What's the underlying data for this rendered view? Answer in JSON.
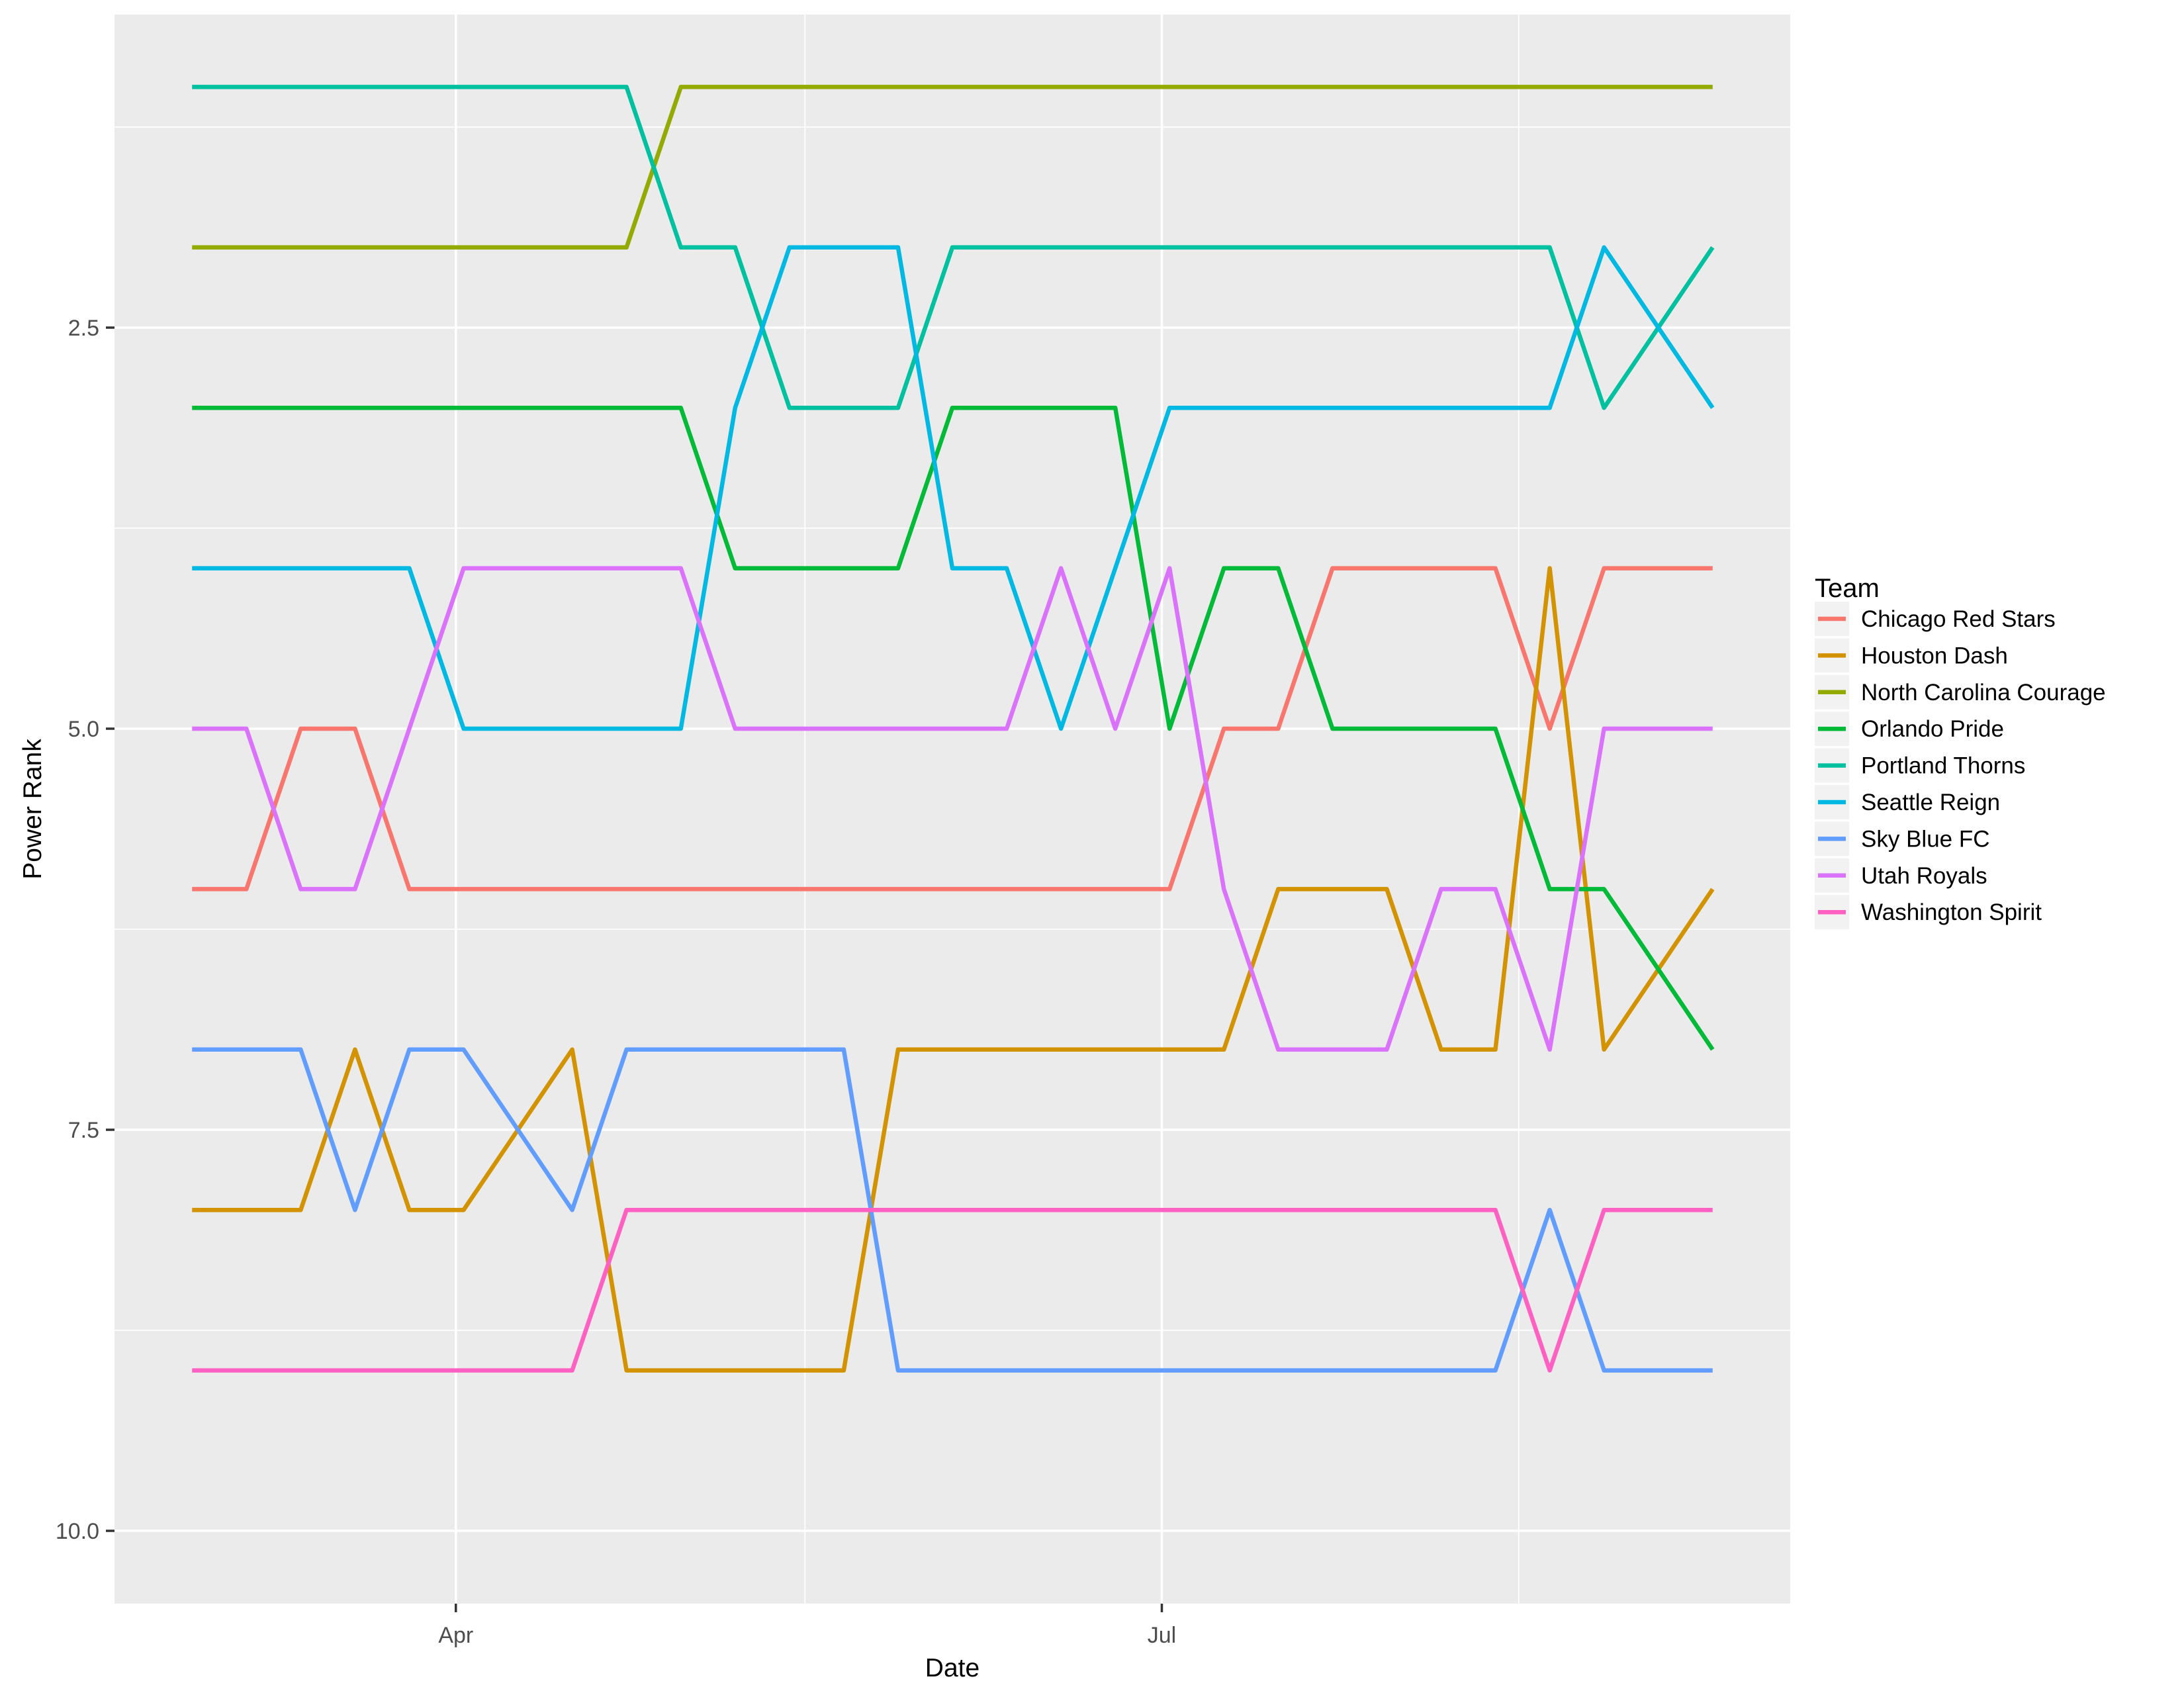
{
  "figure": {
    "kind": "ggplot-style bump chart",
    "background": "#FFFFFF",
    "panel_background": "#EBEBEB",
    "grid_color": "#FFFFFF",
    "tick_color": "#333333",
    "tick_label_color": "#4D4D4D",
    "axis_title_color": "#000000",
    "legend_key_background": "#F2F2F2"
  },
  "axes": {
    "x_title": "Date",
    "y_title": "Power Rank",
    "x_tick_labels": [
      "Apr",
      "Jul"
    ],
    "y_tick_labels": [
      "2.5",
      "5.0",
      "7.5",
      "10.0"
    ]
  },
  "legend": {
    "title": "Team",
    "entries": [
      {
        "label": "Chicago Red Stars",
        "color": "#F8766D"
      },
      {
        "label": "Houston Dash",
        "color": "#D39200"
      },
      {
        "label": "North Carolina Courage",
        "color": "#93AA00"
      },
      {
        "label": "Orlando Pride",
        "color": "#00BA38"
      },
      {
        "label": "Portland Thorns",
        "color": "#00C19F"
      },
      {
        "label": "Seattle Reign",
        "color": "#00B9E3"
      },
      {
        "label": "Sky Blue FC",
        "color": "#619CFF"
      },
      {
        "label": "Utah Royals",
        "color": "#DB72FB"
      },
      {
        "label": "Washington Spirit",
        "color": "#FF61C3"
      }
    ]
  },
  "chart_data": {
    "type": "line",
    "title": "",
    "xlabel": "Date",
    "ylabel": "Power Rank",
    "y_axis_reversed": true,
    "ylim_display": [
      0.55,
      10.45
    ],
    "grid": true,
    "legend_position": "right",
    "x_dates": [
      "2018-02-26",
      "2018-03-05",
      "2018-03-12",
      "2018-03-19",
      "2018-03-26",
      "2018-04-02",
      "2018-04-16",
      "2018-04-23",
      "2018-04-30",
      "2018-05-07",
      "2018-05-14",
      "2018-05-21",
      "2018-05-28",
      "2018-06-04",
      "2018-06-11",
      "2018-06-18",
      "2018-06-25",
      "2018-07-02",
      "2018-07-09",
      "2018-07-16",
      "2018-07-23",
      "2018-07-30",
      "2018-08-06",
      "2018-08-13",
      "2018-08-20",
      "2018-08-27",
      "2018-09-10"
    ],
    "x_day_offsets": [
      10,
      17,
      24,
      31,
      38,
      45,
      59,
      66,
      73,
      80,
      87,
      94,
      101,
      108,
      115,
      122,
      129,
      136,
      143,
      150,
      157,
      164,
      171,
      178,
      185,
      192,
      206
    ],
    "x_domain_days": 216,
    "x_breaks": [
      {
        "label": "Apr",
        "day": 44
      },
      {
        "label": "Jul",
        "day": 135
      }
    ],
    "x_minor_days": [
      89,
      181
    ],
    "y_breaks": [
      {
        "label": "2.5",
        "rank": 2.5
      },
      {
        "label": "5.0",
        "rank": 5.0
      },
      {
        "label": "7.5",
        "rank": 7.5
      },
      {
        "label": "10.0",
        "rank": 10.0
      }
    ],
    "y_minor_ranks": [
      1.25,
      3.75,
      6.25,
      8.75
    ],
    "series": [
      {
        "name": "Chicago Red Stars",
        "color": "#F8766D",
        "values": [
          6,
          6,
          5,
          5,
          6,
          6,
          6,
          6,
          6,
          6,
          6,
          6,
          6,
          6,
          6,
          6,
          6,
          6,
          5,
          5,
          4,
          4,
          4,
          4,
          5,
          4,
          4
        ]
      },
      {
        "name": "Houston Dash",
        "color": "#D39200",
        "values": [
          8,
          8,
          8,
          7,
          8,
          8,
          7,
          9,
          9,
          9,
          9,
          9,
          7,
          7,
          7,
          7,
          7,
          7,
          7,
          6,
          6,
          6,
          7,
          7,
          4,
          7,
          6
        ]
      },
      {
        "name": "North Carolina Courage",
        "color": "#93AA00",
        "values": [
          2,
          2,
          2,
          2,
          2,
          2,
          2,
          2,
          1,
          1,
          1,
          1,
          1,
          1,
          1,
          1,
          1,
          1,
          1,
          1,
          1,
          1,
          1,
          1,
          1,
          1,
          1
        ]
      },
      {
        "name": "Orlando Pride",
        "color": "#00BA38",
        "values": [
          3,
          3,
          3,
          3,
          3,
          3,
          3,
          3,
          3,
          4,
          4,
          4,
          4,
          3,
          3,
          3,
          3,
          5,
          4,
          4,
          5,
          5,
          5,
          5,
          6,
          6,
          7
        ]
      },
      {
        "name": "Portland Thorns",
        "color": "#00C19F",
        "values": [
          1,
          1,
          1,
          1,
          1,
          1,
          1,
          1,
          2,
          2,
          3,
          3,
          3,
          2,
          2,
          2,
          2,
          2,
          2,
          2,
          2,
          2,
          2,
          2,
          2,
          3,
          2
        ]
      },
      {
        "name": "Seattle Reign",
        "color": "#00B9E3",
        "values": [
          4,
          4,
          4,
          4,
          4,
          5,
          5,
          5,
          5,
          3,
          2,
          2,
          2,
          4,
          4,
          5,
          4,
          3,
          3,
          3,
          3,
          3,
          3,
          3,
          3,
          2,
          3
        ]
      },
      {
        "name": "Sky Blue FC",
        "color": "#619CFF",
        "values": [
          7,
          7,
          7,
          8,
          7,
          7,
          8,
          7,
          7,
          7,
          7,
          7,
          9,
          9,
          9,
          9,
          9,
          9,
          9,
          9,
          9,
          9,
          9,
          9,
          8,
          9,
          9
        ]
      },
      {
        "name": "Utah Royals",
        "color": "#DB72FB",
        "values": [
          5,
          5,
          6,
          6,
          5,
          4,
          4,
          4,
          4,
          5,
          5,
          5,
          5,
          5,
          5,
          4,
          5,
          4,
          6,
          7,
          7,
          7,
          6,
          6,
          7,
          5,
          5
        ]
      },
      {
        "name": "Washington Spirit",
        "color": "#FF61C3",
        "values": [
          9,
          9,
          9,
          9,
          9,
          9,
          9,
          8,
          8,
          8,
          8,
          8,
          8,
          8,
          8,
          8,
          8,
          8,
          8,
          8,
          8,
          8,
          8,
          8,
          9,
          8,
          8
        ]
      }
    ]
  }
}
